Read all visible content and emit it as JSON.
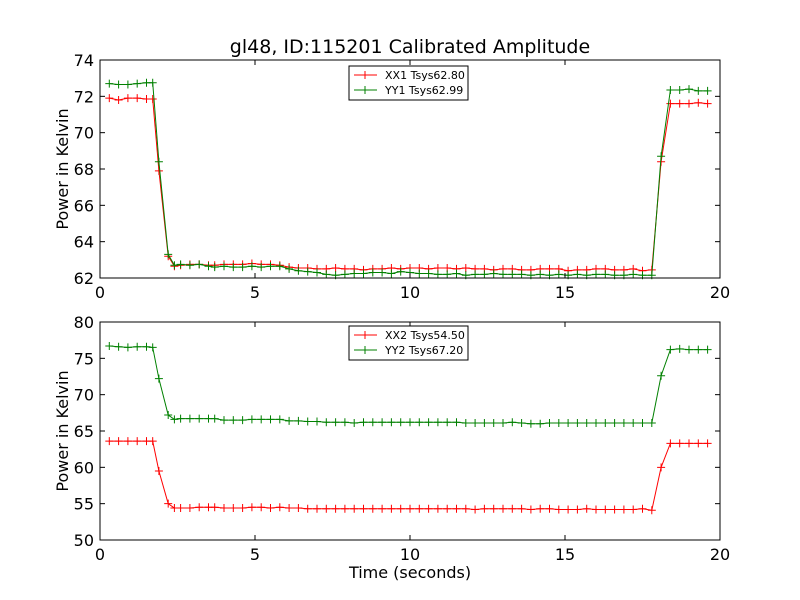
{
  "chart_data": [
    {
      "type": "line",
      "title": "gl48, ID:115201 Calibrated Amplitude",
      "xlabel": "",
      "ylabel": "Power in Kelvin",
      "xlim": [
        0,
        20
      ],
      "ylim": [
        62,
        74
      ],
      "xticks": [
        "0",
        "5",
        "10",
        "15",
        "20"
      ],
      "yticks": [
        "62",
        "64",
        "66",
        "68",
        "70",
        "72",
        "74"
      ],
      "legend_position": "top-center",
      "x": [
        0.3,
        0.6,
        0.9,
        1.2,
        1.5,
        1.7,
        1.9,
        2.2,
        2.4,
        2.6,
        2.9,
        3.2,
        3.5,
        3.7,
        4.0,
        4.3,
        4.6,
        4.9,
        5.2,
        5.5,
        5.8,
        6.1,
        6.4,
        6.7,
        7.0,
        7.3,
        7.6,
        7.9,
        8.2,
        8.5,
        8.8,
        9.1,
        9.4,
        9.7,
        10.0,
        10.3,
        10.6,
        10.9,
        11.2,
        11.5,
        11.8,
        12.1,
        12.4,
        12.7,
        13.0,
        13.3,
        13.6,
        13.9,
        14.2,
        14.5,
        14.8,
        15.1,
        15.4,
        15.7,
        16.0,
        16.3,
        16.6,
        16.9,
        17.2,
        17.5,
        17.8,
        18.1,
        18.4,
        18.7,
        19.0,
        19.3,
        19.6
      ],
      "series": [
        {
          "name": "XX1 Tsys62.80",
          "color": "#ff0000",
          "values": [
            71.9,
            71.8,
            71.9,
            71.9,
            71.85,
            71.85,
            67.9,
            63.2,
            62.65,
            62.7,
            62.75,
            62.75,
            62.7,
            62.7,
            62.75,
            62.75,
            62.75,
            62.8,
            62.75,
            62.75,
            62.7,
            62.6,
            62.55,
            62.55,
            62.5,
            62.5,
            62.55,
            62.5,
            62.5,
            62.45,
            62.5,
            62.5,
            62.55,
            62.5,
            62.55,
            62.55,
            62.5,
            62.55,
            62.55,
            62.5,
            62.55,
            62.5,
            62.5,
            62.45,
            62.5,
            62.5,
            62.45,
            62.45,
            62.5,
            62.5,
            62.5,
            62.4,
            62.45,
            62.45,
            62.5,
            62.5,
            62.45,
            62.45,
            62.5,
            62.4,
            62.45,
            68.4,
            71.6,
            71.6,
            71.6,
            71.65,
            71.6
          ]
        },
        {
          "name": "YY1 Tsys62.99",
          "color": "#008000",
          "values": [
            72.7,
            72.65,
            72.65,
            72.7,
            72.75,
            72.75,
            68.4,
            63.3,
            62.7,
            62.75,
            62.7,
            62.75,
            62.65,
            62.6,
            62.65,
            62.6,
            62.6,
            62.65,
            62.6,
            62.65,
            62.65,
            62.5,
            62.4,
            62.35,
            62.3,
            62.2,
            62.15,
            62.2,
            62.25,
            62.25,
            62.3,
            62.3,
            62.25,
            62.35,
            62.3,
            62.25,
            62.25,
            62.2,
            62.2,
            62.25,
            62.15,
            62.2,
            62.2,
            62.25,
            62.2,
            62.2,
            62.2,
            62.15,
            62.2,
            62.15,
            62.2,
            62.15,
            62.2,
            62.15,
            62.2,
            62.2,
            62.15,
            62.15,
            62.2,
            62.15,
            62.15,
            68.7,
            72.35,
            72.35,
            72.4,
            72.3,
            72.3
          ]
        }
      ]
    },
    {
      "type": "line",
      "title": "",
      "xlabel": "Time (seconds)",
      "ylabel": "Power in Kelvin",
      "xlim": [
        0,
        20
      ],
      "ylim": [
        50,
        80
      ],
      "xticks": [
        "0",
        "5",
        "10",
        "15",
        "20"
      ],
      "yticks": [
        "50",
        "55",
        "60",
        "65",
        "70",
        "75",
        "80"
      ],
      "legend_position": "top-center",
      "x": [
        0.3,
        0.6,
        0.9,
        1.2,
        1.5,
        1.7,
        1.9,
        2.2,
        2.4,
        2.6,
        2.9,
        3.2,
        3.5,
        3.7,
        4.0,
        4.3,
        4.6,
        4.9,
        5.2,
        5.5,
        5.8,
        6.1,
        6.4,
        6.7,
        7.0,
        7.3,
        7.6,
        7.9,
        8.2,
        8.5,
        8.8,
        9.1,
        9.4,
        9.7,
        10.0,
        10.3,
        10.6,
        10.9,
        11.2,
        11.5,
        11.8,
        12.1,
        12.4,
        12.7,
        13.0,
        13.3,
        13.6,
        13.9,
        14.2,
        14.5,
        14.8,
        15.1,
        15.4,
        15.7,
        16.0,
        16.3,
        16.6,
        16.9,
        17.2,
        17.5,
        17.8,
        18.1,
        18.4,
        18.7,
        19.0,
        19.3,
        19.6
      ],
      "series": [
        {
          "name": "XX2 Tsys54.50",
          "color": "#ff0000",
          "values": [
            63.6,
            63.6,
            63.6,
            63.6,
            63.6,
            63.6,
            59.5,
            55.0,
            54.4,
            54.4,
            54.4,
            54.5,
            54.5,
            54.5,
            54.4,
            54.4,
            54.4,
            54.5,
            54.5,
            54.4,
            54.5,
            54.4,
            54.4,
            54.3,
            54.3,
            54.3,
            54.3,
            54.3,
            54.3,
            54.3,
            54.3,
            54.3,
            54.3,
            54.3,
            54.3,
            54.3,
            54.3,
            54.3,
            54.3,
            54.3,
            54.3,
            54.2,
            54.3,
            54.3,
            54.3,
            54.3,
            54.3,
            54.2,
            54.3,
            54.3,
            54.2,
            54.2,
            54.2,
            54.3,
            54.2,
            54.2,
            54.2,
            54.2,
            54.2,
            54.3,
            54.1,
            60.0,
            63.3,
            63.3,
            63.3,
            63.3,
            63.3
          ]
        },
        {
          "name": "YY2 Tsys67.20",
          "color": "#008000",
          "values": [
            76.7,
            76.6,
            76.5,
            76.6,
            76.6,
            76.5,
            72.2,
            67.2,
            66.6,
            66.7,
            66.7,
            66.7,
            66.7,
            66.7,
            66.5,
            66.5,
            66.5,
            66.6,
            66.6,
            66.6,
            66.6,
            66.4,
            66.4,
            66.3,
            66.3,
            66.2,
            66.2,
            66.2,
            66.1,
            66.2,
            66.2,
            66.2,
            66.2,
            66.2,
            66.2,
            66.2,
            66.2,
            66.2,
            66.2,
            66.2,
            66.1,
            66.1,
            66.1,
            66.1,
            66.1,
            66.2,
            66.1,
            66.0,
            66.0,
            66.1,
            66.1,
            66.1,
            66.1,
            66.1,
            66.1,
            66.1,
            66.1,
            66.1,
            66.1,
            66.1,
            66.1,
            72.6,
            76.2,
            76.3,
            76.2,
            76.2,
            76.2
          ]
        }
      ]
    }
  ]
}
